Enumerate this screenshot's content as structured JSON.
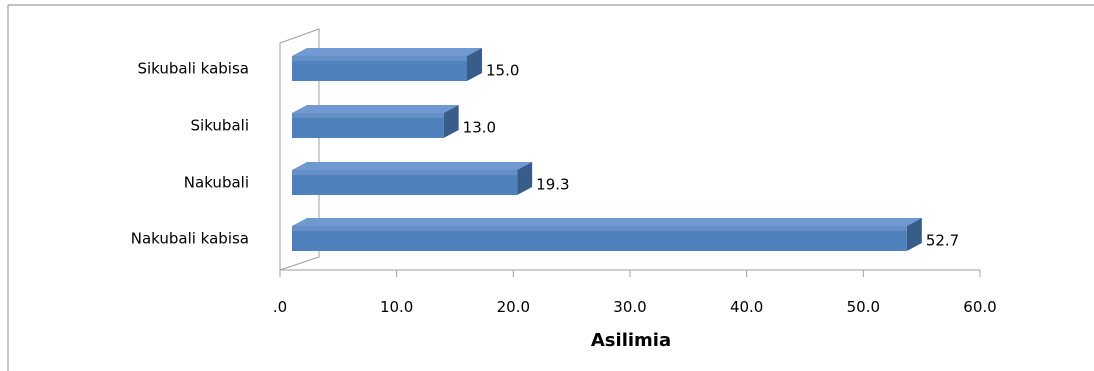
{
  "chart_data": {
    "type": "bar",
    "orientation": "horizontal",
    "style": "3d",
    "categories": [
      "Nakubali kabisa",
      "Nakubali",
      "Sikubali",
      "Sikubali kabisa"
    ],
    "values": [
      52.7,
      19.3,
      13.0,
      15.0
    ],
    "value_labels": [
      "52.7",
      "19.3",
      "13.0",
      "15.0"
    ],
    "title": "",
    "xlabel": "Asilimia",
    "ylabel": "",
    "xlim": [
      0,
      60
    ],
    "x_ticks": [
      0,
      10,
      20,
      30,
      40,
      50,
      60
    ],
    "x_tick_labels": [
      ".0",
      "10.0",
      "20.0",
      "30.0",
      "40.0",
      "50.0",
      "60.0"
    ],
    "grid": false,
    "legend": "none",
    "colors": {
      "bar_front": "#4f81bd",
      "bar_top": "#6f99d0",
      "bar_side": "#385d8a",
      "axis": "#a0a0a0",
      "frame": "#888888"
    }
  }
}
